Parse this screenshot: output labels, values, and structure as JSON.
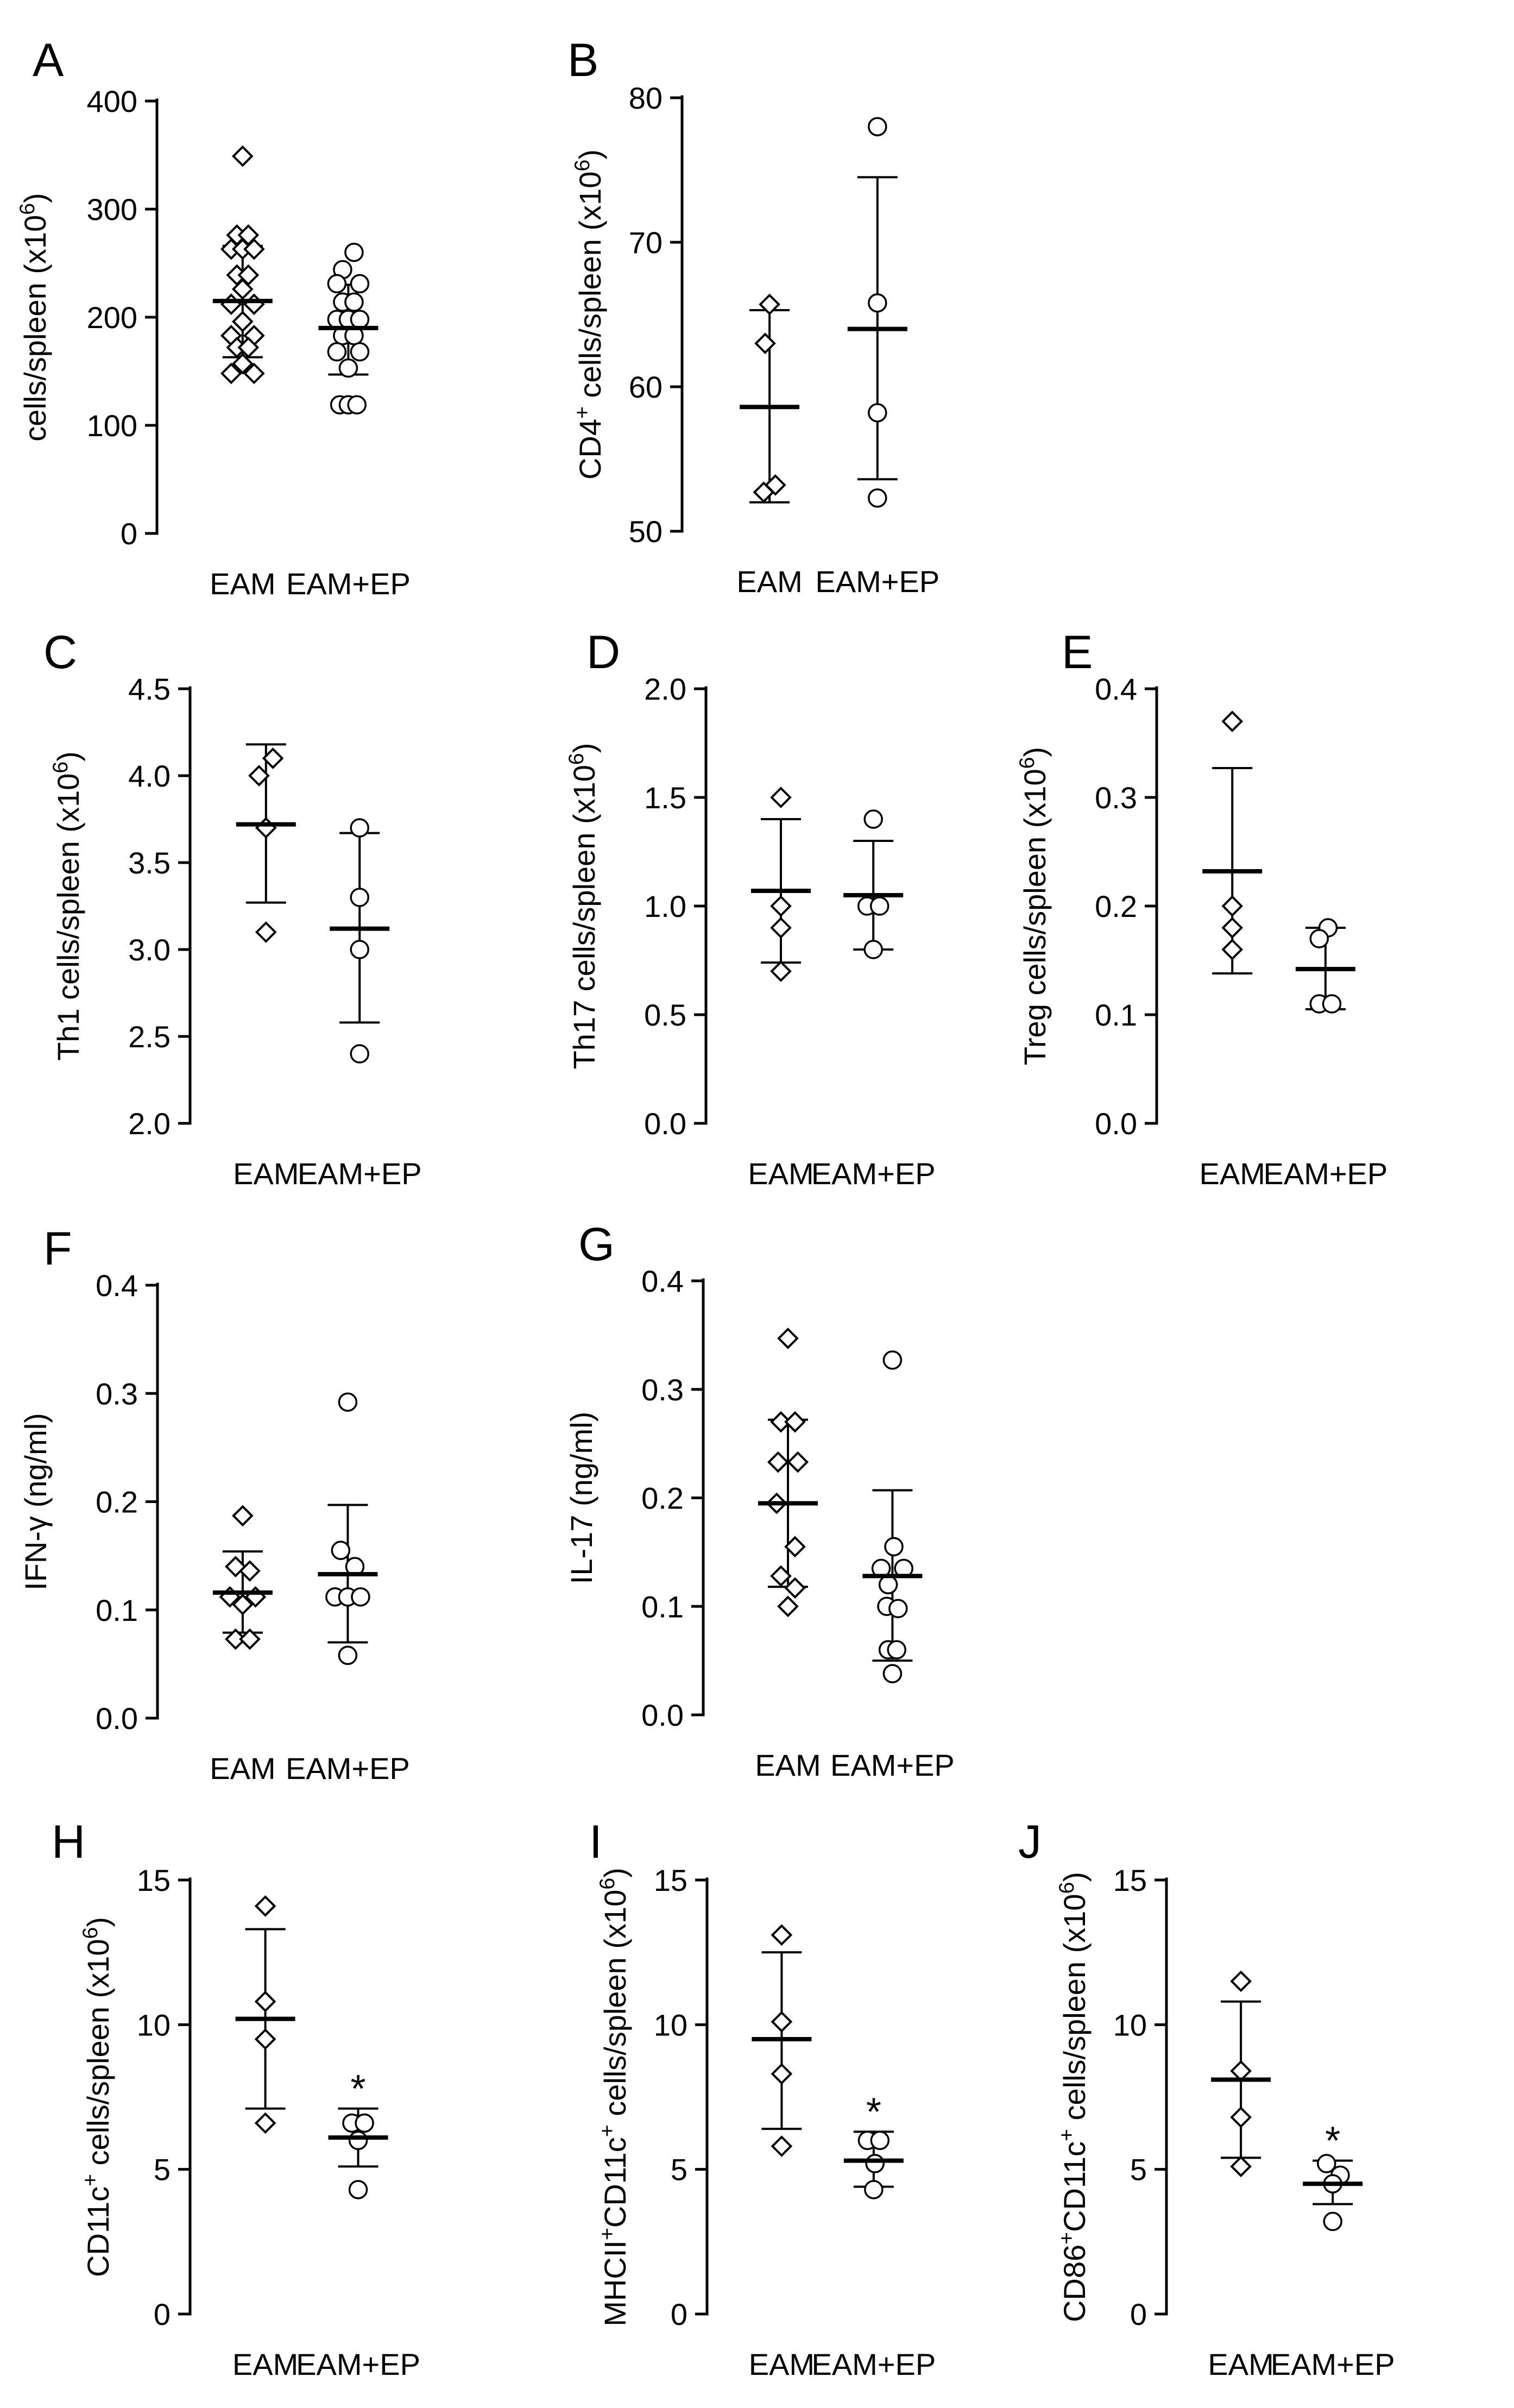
{
  "figure": {
    "group_labels": [
      "EAM",
      "EAM+EP"
    ]
  },
  "chart_data": [
    {
      "panel": "A",
      "type": "scatter",
      "ylabel_html": "cells/spleen (x10<tspan baseline-shift=\"super\" font-size=\"70%\">6</tspan>)",
      "ylim": [
        0,
        400
      ],
      "yticks": [
        0,
        100,
        200,
        300,
        400
      ],
      "decimals": 0,
      "categories": [
        "EAM",
        "EAM+EP"
      ],
      "markers": [
        "diamond",
        "circle"
      ],
      "significance": [
        "",
        ""
      ],
      "groups": [
        {
          "name": "EAM",
          "mean": 215,
          "sd_low": 163,
          "sd_high": 266,
          "points": [
            {
              "y": 349,
              "o": 0
            },
            {
              "y": 276,
              "o": -0.4
            },
            {
              "y": 276,
              "o": 0.4
            },
            {
              "y": 263,
              "o": -0.8
            },
            {
              "y": 263,
              "o": 0
            },
            {
              "y": 263,
              "o": 0.8
            },
            {
              "y": 239,
              "o": -0.4
            },
            {
              "y": 239,
              "o": 0.4
            },
            {
              "y": 226,
              "o": 0
            },
            {
              "y": 212,
              "o": -0.8
            },
            {
              "y": 212,
              "o": 0.8
            },
            {
              "y": 196,
              "o": 0
            },
            {
              "y": 183,
              "o": -0.8
            },
            {
              "y": 183,
              "o": 0.8
            },
            {
              "y": 172,
              "o": -0.4
            },
            {
              "y": 172,
              "o": 0.4
            },
            {
              "y": 157,
              "o": 0
            },
            {
              "y": 148,
              "o": -0.8
            },
            {
              "y": 148,
              "o": 0.8
            }
          ]
        },
        {
          "name": "EAM+EP",
          "mean": 190,
          "sd_low": 147,
          "sd_high": 230,
          "points": [
            {
              "y": 260,
              "o": 0.4
            },
            {
              "y": 244,
              "o": -0.4
            },
            {
              "y": 231,
              "o": -0.8
            },
            {
              "y": 231,
              "o": 0.8
            },
            {
              "y": 214,
              "o": -0.4
            },
            {
              "y": 214,
              "o": 0.4
            },
            {
              "y": 198,
              "o": -0.8
            },
            {
              "y": 198,
              "o": 0
            },
            {
              "y": 198,
              "o": 0.8
            },
            {
              "y": 183,
              "o": -0.4
            },
            {
              "y": 183,
              "o": 0.4
            },
            {
              "y": 168,
              "o": -0.8
            },
            {
              "y": 168,
              "o": 0.8
            },
            {
              "y": 153,
              "o": 0
            },
            {
              "y": 119,
              "o": -0.6
            },
            {
              "y": 119,
              "o": 0
            },
            {
              "y": 119,
              "o": 0.6
            }
          ]
        }
      ]
    },
    {
      "panel": "B",
      "type": "scatter",
      "ylabel_html": "CD4<tspan baseline-shift=\"super\" font-size=\"70%\">+</tspan> cells/spleen (x10<tspan baseline-shift=\"super\" font-size=\"70%\">6</tspan>)",
      "ylim": [
        50,
        80
      ],
      "yticks": [
        50,
        60,
        70,
        80
      ],
      "decimals": 0,
      "categories": [
        "EAM",
        "EAM+EP"
      ],
      "markers": [
        "diamond",
        "circle"
      ],
      "significance": [
        "",
        ""
      ],
      "groups": [
        {
          "name": "EAM",
          "mean": 58.6,
          "sd_low": 52.0,
          "sd_high": 65.3,
          "points": [
            {
              "y": 65.7,
              "o": 0
            },
            {
              "y": 63.0,
              "o": -0.3
            },
            {
              "y": 53.2,
              "o": 0.4
            },
            {
              "y": 52.7,
              "o": -0.4
            }
          ]
        },
        {
          "name": "EAM+EP",
          "mean": 64.0,
          "sd_low": 53.6,
          "sd_high": 74.5,
          "points": [
            {
              "y": 78.0,
              "o": 0
            },
            {
              "y": 65.8,
              "o": 0
            },
            {
              "y": 58.2,
              "o": 0
            },
            {
              "y": 52.3,
              "o": 0
            }
          ]
        }
      ]
    },
    {
      "panel": "C",
      "type": "scatter",
      "ylabel_html": "Th1 cells/spleen (x10<tspan baseline-shift=\"super\" font-size=\"70%\">6</tspan>)",
      "ylim": [
        2.0,
        4.5
      ],
      "yticks": [
        2.0,
        2.5,
        3.0,
        3.5,
        4.0,
        4.5
      ],
      "decimals": 1,
      "categories": [
        "EAM",
        "EAM+EP"
      ],
      "markers": [
        "diamond",
        "circle"
      ],
      "significance": [
        "",
        ""
      ],
      "groups": [
        {
          "name": "EAM",
          "mean": 3.72,
          "sd_low": 3.27,
          "sd_high": 4.18,
          "points": [
            {
              "y": 4.1,
              "o": 0.55
            },
            {
              "y": 4.0,
              "o": -0.55
            },
            {
              "y": 3.7,
              "o": 0
            },
            {
              "y": 3.1,
              "o": 0
            }
          ]
        },
        {
          "name": "EAM+EP",
          "mean": 3.12,
          "sd_low": 2.58,
          "sd_high": 3.67,
          "points": [
            {
              "y": 3.7,
              "o": 0
            },
            {
              "y": 3.3,
              "o": 0
            },
            {
              "y": 3.0,
              "o": 0
            },
            {
              "y": 2.4,
              "o": 0
            }
          ]
        }
      ]
    },
    {
      "panel": "D",
      "type": "scatter",
      "ylabel_html": "Th17 cells/spleen (x10<tspan baseline-shift=\"super\" font-size=\"70%\">6</tspan>)",
      "ylim": [
        0.0,
        2.0
      ],
      "yticks": [
        0.0,
        0.5,
        1.0,
        1.5,
        2.0
      ],
      "decimals": 1,
      "categories": [
        "EAM",
        "EAM+EP"
      ],
      "markers": [
        "diamond",
        "circle"
      ],
      "significance": [
        "",
        ""
      ],
      "groups": [
        {
          "name": "EAM",
          "mean": 1.07,
          "sd_low": 0.74,
          "sd_high": 1.4,
          "points": [
            {
              "y": 1.5,
              "o": 0
            },
            {
              "y": 1.0,
              "o": 0
            },
            {
              "y": 0.9,
              "o": 0
            },
            {
              "y": 0.7,
              "o": 0
            }
          ]
        },
        {
          "name": "EAM+EP",
          "mean": 1.05,
          "sd_low": 0.8,
          "sd_high": 1.3,
          "points": [
            {
              "y": 1.4,
              "o": 0
            },
            {
              "y": 1.0,
              "o": -0.5
            },
            {
              "y": 1.0,
              "o": 0.5
            },
            {
              "y": 0.8,
              "o": 0
            }
          ]
        }
      ]
    },
    {
      "panel": "E",
      "type": "scatter",
      "ylabel_html": "Treg cells/spleen (x10<tspan baseline-shift=\"super\" font-size=\"70%\">6</tspan>)",
      "ylim": [
        0.0,
        0.4
      ],
      "yticks": [
        0.0,
        0.1,
        0.2,
        0.3,
        0.4
      ],
      "decimals": 1,
      "categories": [
        "EAM",
        "EAM+EP"
      ],
      "markers": [
        "diamond",
        "circle"
      ],
      "significance": [
        "",
        ""
      ],
      "groups": [
        {
          "name": "EAM",
          "mean": 0.232,
          "sd_low": 0.138,
          "sd_high": 0.327,
          "points": [
            {
              "y": 0.37,
              "o": 0
            },
            {
              "y": 0.2,
              "o": 0
            },
            {
              "y": 0.18,
              "o": 0
            },
            {
              "y": 0.16,
              "o": 0
            }
          ]
        },
        {
          "name": "EAM+EP",
          "mean": 0.142,
          "sd_low": 0.105,
          "sd_high": 0.18,
          "points": [
            {
              "y": 0.18,
              "o": 0.2
            },
            {
              "y": 0.17,
              "o": -0.5
            },
            {
              "y": 0.11,
              "o": -0.5
            },
            {
              "y": 0.11,
              "o": 0.5
            }
          ]
        }
      ]
    },
    {
      "panel": "F",
      "type": "scatter",
      "ylabel_html": "IFN-γ (ng/ml)",
      "ylim": [
        0.0,
        0.4
      ],
      "yticks": [
        0.0,
        0.1,
        0.2,
        0.3,
        0.4
      ],
      "decimals": 1,
      "categories": [
        "EAM",
        "EAM+EP"
      ],
      "markers": [
        "diamond",
        "circle"
      ],
      "significance": [
        "",
        ""
      ],
      "groups": [
        {
          "name": "EAM",
          "mean": 0.116,
          "sd_low": 0.079,
          "sd_high": 0.154,
          "points": [
            {
              "y": 0.187,
              "o": 0
            },
            {
              "y": 0.14,
              "o": -0.5
            },
            {
              "y": 0.136,
              "o": 0.5
            },
            {
              "y": 0.112,
              "o": -0.9
            },
            {
              "y": 0.112,
              "o": 0.9
            },
            {
              "y": 0.105,
              "o": 0
            },
            {
              "y": 0.073,
              "o": -0.5
            },
            {
              "y": 0.073,
              "o": 0.5
            }
          ]
        },
        {
          "name": "EAM+EP",
          "mean": 0.133,
          "sd_low": 0.07,
          "sd_high": 0.197,
          "points": [
            {
              "y": 0.292,
              "o": 0
            },
            {
              "y": 0.155,
              "o": -0.5
            },
            {
              "y": 0.14,
              "o": 0.5
            },
            {
              "y": 0.112,
              "o": -0.9
            },
            {
              "y": 0.112,
              "o": 0
            },
            {
              "y": 0.112,
              "o": 0.9
            },
            {
              "y": 0.058,
              "o": 0
            }
          ]
        }
      ]
    },
    {
      "panel": "G",
      "type": "scatter",
      "ylabel_html": "IL-17 (ng/ml)",
      "ylim": [
        0.0,
        0.4
      ],
      "yticks": [
        0.0,
        0.1,
        0.2,
        0.3,
        0.4
      ],
      "decimals": 1,
      "categories": [
        "EAM",
        "EAM+EP"
      ],
      "markers": [
        "diamond",
        "circle"
      ],
      "significance": [
        "",
        ""
      ],
      "groups": [
        {
          "name": "EAM",
          "mean": 0.195,
          "sd_low": 0.118,
          "sd_high": 0.272,
          "points": [
            {
              "y": 0.347,
              "o": 0
            },
            {
              "y": 0.27,
              "o": -0.5
            },
            {
              "y": 0.27,
              "o": 0.5
            },
            {
              "y": 0.233,
              "o": -0.7
            },
            {
              "y": 0.233,
              "o": 0.7
            },
            {
              "y": 0.195,
              "o": -0.8
            },
            {
              "y": 0.155,
              "o": 0.5
            },
            {
              "y": 0.128,
              "o": -0.5
            },
            {
              "y": 0.117,
              "o": 0.5
            },
            {
              "y": 0.1,
              "o": 0
            }
          ]
        },
        {
          "name": "EAM+EP",
          "mean": 0.128,
          "sd_low": 0.05,
          "sd_high": 0.207,
          "points": [
            {
              "y": 0.327,
              "o": 0
            },
            {
              "y": 0.155,
              "o": 0.1
            },
            {
              "y": 0.135,
              "o": -0.8
            },
            {
              "y": 0.135,
              "o": 0.8
            },
            {
              "y": 0.12,
              "o": -0.3
            },
            {
              "y": 0.1,
              "o": -0.4
            },
            {
              "y": 0.098,
              "o": 0.4
            },
            {
              "y": 0.06,
              "o": -0.3
            },
            {
              "y": 0.06,
              "o": 0.3
            },
            {
              "y": 0.038,
              "o": 0
            }
          ]
        }
      ]
    },
    {
      "panel": "H",
      "type": "scatter",
      "ylabel_html": "CD11c<tspan baseline-shift=\"super\" font-size=\"70%\">+</tspan> cells/spleen (x10<tspan baseline-shift=\"super\" font-size=\"70%\">6</tspan>)",
      "ylim": [
        0,
        15
      ],
      "yticks": [
        0,
        5,
        10,
        15
      ],
      "decimals": 0,
      "categories": [
        "EAM",
        "EAM+EP"
      ],
      "markers": [
        "diamond",
        "circle"
      ],
      "significance": [
        "",
        "*"
      ],
      "groups": [
        {
          "name": "EAM",
          "mean": 10.2,
          "sd_low": 7.1,
          "sd_high": 13.3,
          "points": [
            {
              "y": 14.1,
              "o": 0
            },
            {
              "y": 10.8,
              "o": 0
            },
            {
              "y": 9.5,
              "o": 0
            },
            {
              "y": 6.6,
              "o": 0
            }
          ]
        },
        {
          "name": "EAM+EP",
          "mean": 6.1,
          "sd_low": 5.1,
          "sd_high": 7.1,
          "points": [
            {
              "y": 6.6,
              "o": -0.5
            },
            {
              "y": 6.6,
              "o": 0.5
            },
            {
              "y": 6.0,
              "o": 0
            },
            {
              "y": 4.3,
              "o": 0
            }
          ]
        }
      ]
    },
    {
      "panel": "I",
      "type": "scatter",
      "ylabel_html": "MHCII<tspan baseline-shift=\"super\" font-size=\"70%\">+</tspan>CD11c<tspan baseline-shift=\"super\" font-size=\"70%\">+</tspan> cells/spleen (x10<tspan baseline-shift=\"super\" font-size=\"70%\">6</tspan>)",
      "ylim": [
        0,
        15
      ],
      "yticks": [
        0,
        5,
        10,
        15
      ],
      "decimals": 0,
      "categories": [
        "EAM",
        "EAM+EP"
      ],
      "markers": [
        "diamond",
        "circle"
      ],
      "significance": [
        "",
        "*"
      ],
      "groups": [
        {
          "name": "EAM",
          "mean": 9.5,
          "sd_low": 6.4,
          "sd_high": 12.5,
          "points": [
            {
              "y": 13.1,
              "o": 0
            },
            {
              "y": 10.1,
              "o": 0
            },
            {
              "y": 8.3,
              "o": 0
            },
            {
              "y": 5.8,
              "o": 0
            }
          ]
        },
        {
          "name": "EAM+EP",
          "mean": 5.3,
          "sd_low": 4.4,
          "sd_high": 6.3,
          "points": [
            {
              "y": 6.0,
              "o": -0.5
            },
            {
              "y": 6.0,
              "o": 0.5
            },
            {
              "y": 5.2,
              "o": 0.1
            },
            {
              "y": 4.3,
              "o": 0
            }
          ]
        }
      ]
    },
    {
      "panel": "J",
      "type": "scatter",
      "ylabel_html": "CD86<tspan baseline-shift=\"super\" font-size=\"70%\">+</tspan>CD11c<tspan baseline-shift=\"super\" font-size=\"70%\">+</tspan> cells/spleen (x10<tspan baseline-shift=\"super\" font-size=\"70%\">6</tspan>)",
      "ylim": [
        0,
        15
      ],
      "yticks": [
        0,
        5,
        10,
        15
      ],
      "decimals": 0,
      "categories": [
        "EAM",
        "EAM+EP"
      ],
      "markers": [
        "diamond",
        "circle"
      ],
      "significance": [
        "",
        "*"
      ],
      "groups": [
        {
          "name": "EAM",
          "mean": 8.1,
          "sd_low": 5.4,
          "sd_high": 10.8,
          "points": [
            {
              "y": 11.5,
              "o": 0
            },
            {
              "y": 8.4,
              "o": 0
            },
            {
              "y": 6.8,
              "o": 0
            },
            {
              "y": 5.1,
              "o": 0
            }
          ]
        },
        {
          "name": "EAM+EP",
          "mean": 4.5,
          "sd_low": 3.8,
          "sd_high": 5.3,
          "points": [
            {
              "y": 5.2,
              "o": -0.5
            },
            {
              "y": 4.8,
              "o": 0.6
            },
            {
              "y": 4.5,
              "o": 0
            },
            {
              "y": 3.2,
              "o": 0
            }
          ]
        }
      ]
    }
  ]
}
